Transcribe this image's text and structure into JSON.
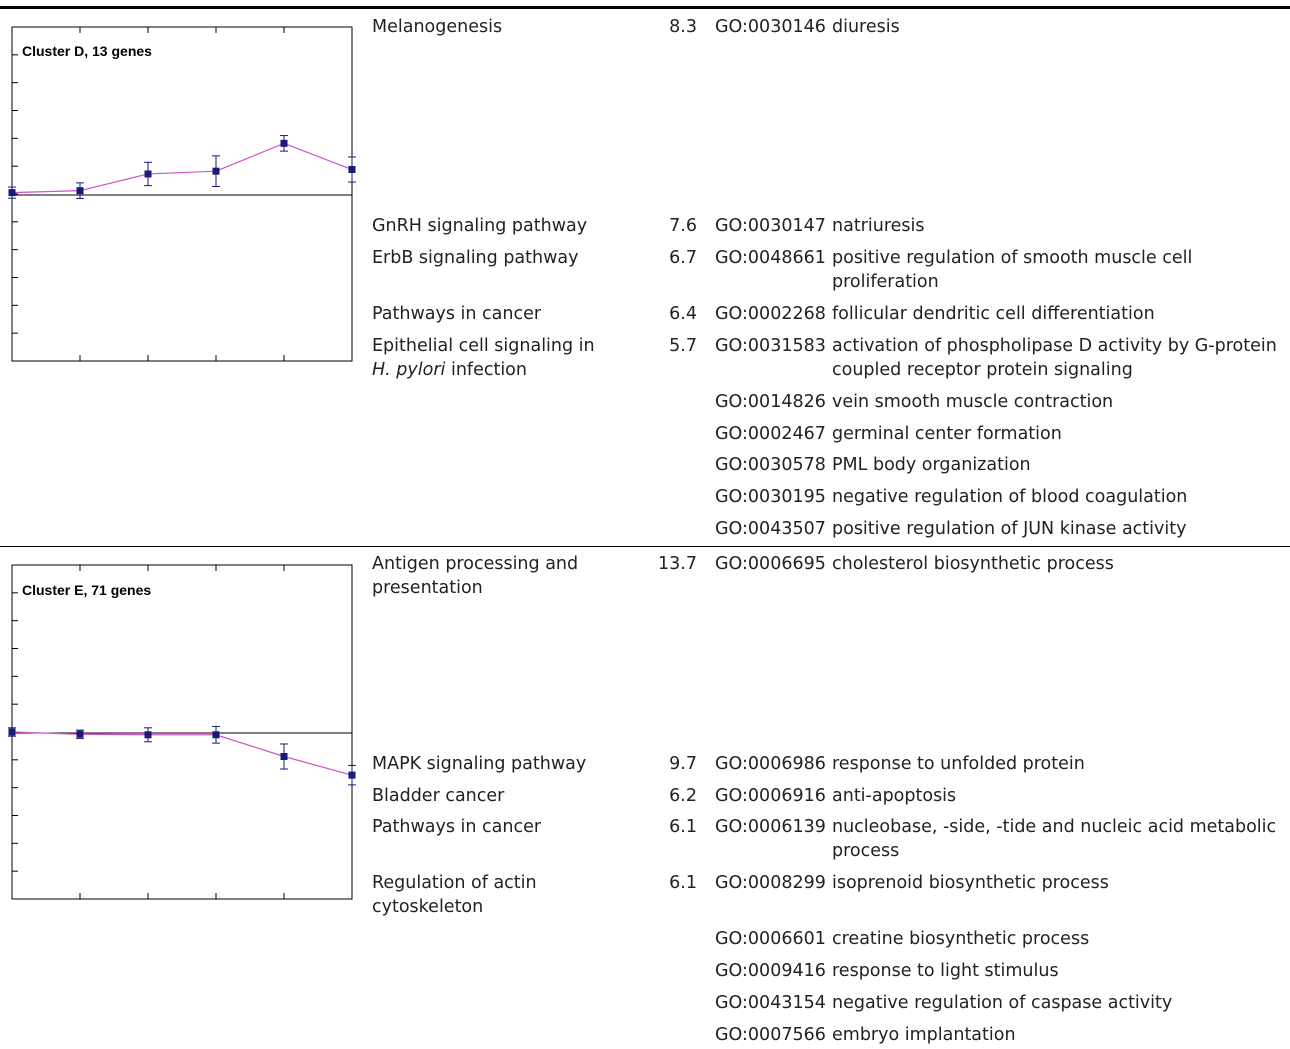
{
  "clusters": [
    {
      "id": "D",
      "chart_data": {
        "type": "line",
        "title": "Cluster D, 13 genes",
        "x": [
          1,
          2,
          3,
          4,
          5,
          6
        ],
        "values": [
          0.05,
          0.12,
          0.72,
          0.82,
          1.82,
          0.88
        ],
        "err": [
          0.2,
          0.28,
          0.42,
          0.55,
          0.28,
          0.45
        ],
        "ylim": [
          -6,
          6
        ],
        "xlabel": "",
        "ylabel": "",
        "line_color": "#d050c8",
        "marker_color": "#1a1a7a"
      },
      "kegg": [
        {
          "line1": "Melanogenesis",
          "line2": "",
          "score": "8.3"
        },
        {
          "line1": "GnRH signaling pathway",
          "line2": "",
          "score": "7.6"
        },
        {
          "line1": "ErbB signaling pathway",
          "line2": "",
          "score": "6.7"
        },
        {
          "line1": "Pathways in cancer",
          "line2": "",
          "score": "6.4"
        },
        {
          "line1": "Epithelial cell signaling in",
          "line2_italic": "H. pylori",
          "line2": " infection",
          "score": "5.7"
        }
      ],
      "go": [
        {
          "id": "GO:0030146",
          "term": "diuresis"
        },
        {
          "id": "GO:0030147",
          "term": "natriuresis"
        },
        {
          "id": "GO:0048661",
          "term": "positive regulation of smooth muscle cell proliferation"
        },
        {
          "id": "GO:0002268",
          "term": "follicular dendritic cell differentiation"
        },
        {
          "id": "GO:0031583",
          "term": "activation of phospholipase D activity by G-protein coupled receptor protein signaling"
        },
        {
          "id": "GO:0014826",
          "term": "vein smooth muscle contraction"
        },
        {
          "id": "GO:0002467",
          "term": "germinal center formation"
        },
        {
          "id": "GO:0030578",
          "term": "PML body organization"
        },
        {
          "id": "GO:0030195",
          "term": "negative regulation of blood coagulation"
        },
        {
          "id": "GO:0043507",
          "term": "positive regulation of JUN kinase activity"
        }
      ]
    },
    {
      "id": "E",
      "chart_data": {
        "type": "line",
        "title": "Cluster E, 71 genes",
        "x": [
          1,
          2,
          3,
          4,
          5,
          6
        ],
        "values": [
          0.0,
          -0.08,
          -0.1,
          -0.1,
          -0.88,
          -1.55
        ],
        "err": [
          0.15,
          0.15,
          0.25,
          0.3,
          0.45,
          0.35
        ],
        "ylim": [
          -6,
          6
        ],
        "xlabel": "",
        "ylabel": "",
        "line_color": "#d050c8",
        "marker_color": "#1a1a7a"
      },
      "kegg": [
        {
          "line1": "Antigen processing and",
          "line2": "presentation",
          "score": "13.7"
        },
        {
          "line1": "MAPK signaling pathway",
          "line2": "",
          "score": "9.7"
        },
        {
          "line1": "Bladder cancer",
          "line2": "",
          "score": "6.2"
        },
        {
          "line1": "Pathways in cancer",
          "line2": "",
          "score": "6.1"
        },
        {
          "line1": "Regulation of actin",
          "line2": "cytoskeleton",
          "score": "6.1"
        }
      ],
      "go": [
        {
          "id": "GO:0006695",
          "term": "cholesterol biosynthetic process"
        },
        {
          "id": "GO:0006986",
          "term": "response to unfolded protein"
        },
        {
          "id": "GO:0006916",
          "term": "anti-apoptosis"
        },
        {
          "id": "GO:0006139",
          "term": "nucleobase, -side, -tide and nucleic acid metabolic process"
        },
        {
          "id": "GO:0008299",
          "term": "isoprenoid biosynthetic process"
        },
        {
          "id": "GO:0006601",
          "term": "creatine biosynthetic process"
        },
        {
          "id": "GO:0009416",
          "term": "response to light stimulus"
        },
        {
          "id": "GO:0043154",
          "term": "negative regulation of caspase activity"
        },
        {
          "id": "GO:0007566",
          "term": "embryo implantation"
        }
      ]
    }
  ]
}
